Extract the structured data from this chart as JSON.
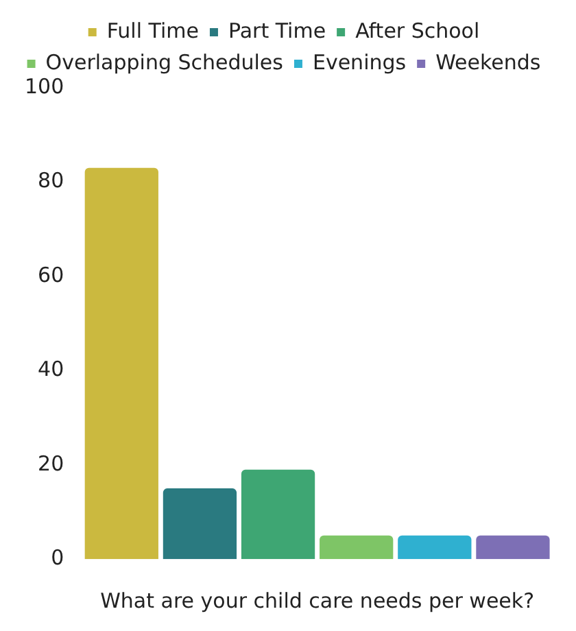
{
  "chart_data": {
    "type": "bar",
    "xlabel": "What are your child care needs per week?",
    "categories": [
      null
    ],
    "series": [
      {
        "name": "Full Time",
        "color": "#cbb93f",
        "values": [
          83
        ]
      },
      {
        "name": "Part Time",
        "color": "#2a7a80",
        "values": [
          15
        ]
      },
      {
        "name": "After School",
        "color": "#3ea673",
        "values": [
          19
        ]
      },
      {
        "name": "Overlapping Schedules",
        "color": "#7ec566",
        "values": [
          5
        ]
      },
      {
        "name": "Evenings",
        "color": "#2fb0d0",
        "values": [
          5
        ]
      },
      {
        "name": "Weekends",
        "color": "#7d6fb5",
        "values": [
          5
        ]
      }
    ],
    "ylim": [
      0,
      100
    ],
    "yticks": [
      0,
      20,
      40,
      60,
      80,
      100
    ],
    "grid": false,
    "legend": "top"
  }
}
